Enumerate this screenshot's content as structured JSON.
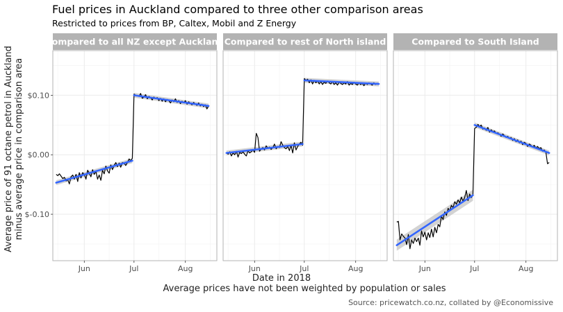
{
  "title": "Fuel prices in Auckland compared to three other comparison areas",
  "subtitle": "Restricted to prices from BP, Caltex, Mobil and Z Energy",
  "ylabel_line1": "Average price of 91 octane petrol in Auckland",
  "ylabel_line2": "minus average price in comparison area",
  "xlabel": "Date in 2018",
  "caption": "Average prices have not been weighted by population or sales",
  "source": "Source: pricewatch.co.nz, collated by @Economissive",
  "chart_data": {
    "type": "line",
    "facets": [
      "Compared to all NZ except Auckland",
      "Compared to rest of North island",
      "Compared to South Island"
    ],
    "x_tick_labels": [
      "Jun",
      "Jul",
      "Aug"
    ],
    "y_tick_labels": [
      "$0.10",
      "$0.00",
      "$-0.10"
    ],
    "y_ticks": [
      0.1,
      0.0,
      -0.1
    ],
    "ylim": [
      -0.178,
      0.175
    ],
    "xlim": [
      "2018-05-13",
      "2018-08-20"
    ],
    "grid": true,
    "colors": {
      "raw": "#000000",
      "trend": "#3366ff",
      "ci_band": "#c8c8c8",
      "strip": "#b3b3b3",
      "grid": "#ebebeb",
      "panel_border": "#b3b3b3"
    },
    "series": [
      {
        "facet": "Compared to all NZ except Auckland",
        "pre_july": {
          "x": [
            "2018-05-15",
            "2018-05-16",
            "2018-05-17",
            "2018-05-18",
            "2018-05-19",
            "2018-05-20",
            "2018-05-21",
            "2018-05-22",
            "2018-05-23",
            "2018-05-24",
            "2018-05-25",
            "2018-05-26",
            "2018-05-27",
            "2018-05-28",
            "2018-05-29",
            "2018-05-30",
            "2018-05-31",
            "2018-06-01",
            "2018-06-02",
            "2018-06-03",
            "2018-06-04",
            "2018-06-05",
            "2018-06-06",
            "2018-06-07",
            "2018-06-08",
            "2018-06-09",
            "2018-06-10",
            "2018-06-11",
            "2018-06-12",
            "2018-06-13",
            "2018-06-14",
            "2018-06-15",
            "2018-06-16",
            "2018-06-17",
            "2018-06-18",
            "2018-06-19",
            "2018-06-20",
            "2018-06-21",
            "2018-06-22",
            "2018-06-23",
            "2018-06-24",
            "2018-06-25",
            "2018-06-26",
            "2018-06-27",
            "2018-06-28",
            "2018-06-29",
            "2018-06-30"
          ],
          "y": [
            -0.033,
            -0.035,
            -0.032,
            -0.036,
            -0.04,
            -0.038,
            -0.044,
            -0.042,
            -0.049,
            -0.037,
            -0.034,
            -0.041,
            -0.033,
            -0.045,
            -0.03,
            -0.039,
            -0.03,
            -0.033,
            -0.041,
            -0.026,
            -0.031,
            -0.037,
            -0.025,
            -0.033,
            -0.028,
            -0.041,
            -0.034,
            -0.043,
            -0.026,
            -0.032,
            -0.019,
            -0.027,
            -0.031,
            -0.017,
            -0.025,
            -0.018,
            -0.013,
            -0.02,
            -0.014,
            -0.021,
            -0.013,
            -0.014,
            -0.018,
            -0.013,
            -0.007,
            -0.01,
            -0.006
          ]
        },
        "post_july": {
          "x": [
            "2018-07-01",
            "2018-07-02",
            "2018-07-03",
            "2018-07-04",
            "2018-07-05",
            "2018-07-06",
            "2018-07-07",
            "2018-07-08",
            "2018-07-09",
            "2018-07-10",
            "2018-07-11",
            "2018-07-12",
            "2018-07-13",
            "2018-07-14",
            "2018-07-15",
            "2018-07-16",
            "2018-07-17",
            "2018-07-18",
            "2018-07-19",
            "2018-07-20",
            "2018-07-21",
            "2018-07-22",
            "2018-07-23",
            "2018-07-24",
            "2018-07-25",
            "2018-07-26",
            "2018-07-27",
            "2018-07-28",
            "2018-07-29",
            "2018-07-30",
            "2018-07-31",
            "2018-08-01",
            "2018-08-02",
            "2018-08-03",
            "2018-08-04",
            "2018-08-05",
            "2018-08-06",
            "2018-08-07",
            "2018-08-08",
            "2018-08-09",
            "2018-08-10",
            "2018-08-11",
            "2018-08-12",
            "2018-08-13",
            "2018-08-14",
            "2018-08-15"
          ],
          "y": [
            0.102,
            0.1,
            0.099,
            0.098,
            0.103,
            0.095,
            0.097,
            0.101,
            0.094,
            0.098,
            0.096,
            0.092,
            0.097,
            0.094,
            0.096,
            0.091,
            0.095,
            0.09,
            0.094,
            0.089,
            0.093,
            0.091,
            0.087,
            0.092,
            0.089,
            0.094,
            0.088,
            0.091,
            0.086,
            0.09,
            0.087,
            0.091,
            0.085,
            0.089,
            0.086,
            0.084,
            0.088,
            0.085,
            0.083,
            0.087,
            0.082,
            0.085,
            0.081,
            0.084,
            0.077,
            0.082
          ]
        },
        "trend_pre": {
          "x": [
            "2018-05-15",
            "2018-06-30"
          ],
          "y": [
            -0.047,
            -0.01
          ]
        },
        "trend_post": {
          "x": [
            "2018-07-01",
            "2018-08-15"
          ],
          "y": [
            0.1,
            0.082
          ]
        }
      },
      {
        "facet": "Compared to rest of North island",
        "pre_july": {
          "x": [
            "2018-05-15",
            "2018-05-16",
            "2018-05-17",
            "2018-05-18",
            "2018-05-19",
            "2018-05-20",
            "2018-05-21",
            "2018-05-22",
            "2018-05-23",
            "2018-05-24",
            "2018-05-25",
            "2018-05-26",
            "2018-05-27",
            "2018-05-28",
            "2018-05-29",
            "2018-05-30",
            "2018-05-31",
            "2018-06-01",
            "2018-06-02",
            "2018-06-03",
            "2018-06-04",
            "2018-06-05",
            "2018-06-06",
            "2018-06-07",
            "2018-06-08",
            "2018-06-09",
            "2018-06-10",
            "2018-06-11",
            "2018-06-12",
            "2018-06-13",
            "2018-06-14",
            "2018-06-15",
            "2018-06-16",
            "2018-06-17",
            "2018-06-18",
            "2018-06-19",
            "2018-06-20",
            "2018-06-21",
            "2018-06-22",
            "2018-06-23",
            "2018-06-24",
            "2018-06-25",
            "2018-06-26",
            "2018-06-27",
            "2018-06-28",
            "2018-06-29",
            "2018-06-30"
          ],
          "y": [
            0.004,
            0.001,
            0.005,
            -0.002,
            0.003,
            0.0,
            0.006,
            -0.004,
            0.004,
            0.002,
            0.005,
            0.001,
            -0.002,
            0.007,
            0.003,
            0.005,
            0.008,
            0.004,
            0.036,
            0.029,
            0.006,
            0.01,
            0.012,
            0.008,
            0.015,
            0.011,
            0.013,
            0.009,
            0.012,
            0.018,
            0.01,
            0.014,
            0.012,
            0.022,
            0.016,
            0.012,
            0.01,
            0.014,
            0.007,
            0.016,
            0.003,
            0.02,
            0.008,
            0.014,
            0.018,
            0.021,
            0.016
          ]
        },
        "post_july": {
          "x": [
            "2018-07-01",
            "2018-07-02",
            "2018-07-03",
            "2018-07-04",
            "2018-07-05",
            "2018-07-06",
            "2018-07-07",
            "2018-07-08",
            "2018-07-09",
            "2018-07-10",
            "2018-07-11",
            "2018-07-12",
            "2018-07-13",
            "2018-07-14",
            "2018-07-15",
            "2018-07-16",
            "2018-07-17",
            "2018-07-18",
            "2018-07-19",
            "2018-07-20",
            "2018-07-21",
            "2018-07-22",
            "2018-07-23",
            "2018-07-24",
            "2018-07-25",
            "2018-07-26",
            "2018-07-27",
            "2018-07-28",
            "2018-07-29",
            "2018-07-30",
            "2018-07-31",
            "2018-08-01",
            "2018-08-02",
            "2018-08-03",
            "2018-08-04",
            "2018-08-05",
            "2018-08-06",
            "2018-08-07",
            "2018-08-08",
            "2018-08-09",
            "2018-08-10",
            "2018-08-11",
            "2018-08-12",
            "2018-08-13",
            "2018-08-14",
            "2018-08-15"
          ],
          "y": [
            0.128,
            0.125,
            0.127,
            0.121,
            0.126,
            0.119,
            0.125,
            0.121,
            0.124,
            0.119,
            0.123,
            0.118,
            0.122,
            0.12,
            0.124,
            0.121,
            0.119,
            0.123,
            0.118,
            0.121,
            0.117,
            0.122,
            0.12,
            0.118,
            0.121,
            0.119,
            0.123,
            0.117,
            0.12,
            0.118,
            0.122,
            0.119,
            0.117,
            0.121,
            0.118,
            0.12,
            0.116,
            0.12,
            0.118,
            0.121,
            0.119,
            0.117,
            0.121,
            0.118,
            0.12,
            0.119
          ]
        },
        "trend_pre": {
          "x": [
            "2018-05-15",
            "2018-06-30"
          ],
          "y": [
            0.003,
            0.018
          ]
        },
        "trend_post": {
          "x": [
            "2018-07-01",
            "2018-08-15"
          ],
          "y": [
            0.125,
            0.119
          ]
        }
      },
      {
        "facet": "Compared to South Island",
        "pre_july": {
          "x": [
            "2018-05-15",
            "2018-05-16",
            "2018-05-17",
            "2018-05-18",
            "2018-05-19",
            "2018-05-20",
            "2018-05-21",
            "2018-05-22",
            "2018-05-23",
            "2018-05-24",
            "2018-05-25",
            "2018-05-26",
            "2018-05-27",
            "2018-05-28",
            "2018-05-29",
            "2018-05-30",
            "2018-05-31",
            "2018-06-01",
            "2018-06-02",
            "2018-06-03",
            "2018-06-04",
            "2018-06-05",
            "2018-06-06",
            "2018-06-07",
            "2018-06-08",
            "2018-06-09",
            "2018-06-10",
            "2018-06-11",
            "2018-06-12",
            "2018-06-13",
            "2018-06-14",
            "2018-06-15",
            "2018-06-16",
            "2018-06-17",
            "2018-06-18",
            "2018-06-19",
            "2018-06-20",
            "2018-06-21",
            "2018-06-22",
            "2018-06-23",
            "2018-06-24",
            "2018-06-25",
            "2018-06-26",
            "2018-06-27",
            "2018-06-28",
            "2018-06-29",
            "2018-06-30"
          ],
          "y": [
            -0.113,
            -0.112,
            -0.143,
            -0.133,
            -0.137,
            -0.14,
            -0.151,
            -0.134,
            -0.158,
            -0.143,
            -0.149,
            -0.14,
            -0.146,
            -0.14,
            -0.152,
            -0.128,
            -0.138,
            -0.13,
            -0.143,
            -0.131,
            -0.139,
            -0.125,
            -0.138,
            -0.122,
            -0.131,
            -0.117,
            -0.121,
            -0.103,
            -0.109,
            -0.096,
            -0.102,
            -0.09,
            -0.094,
            -0.085,
            -0.089,
            -0.079,
            -0.083,
            -0.076,
            -0.081,
            -0.071,
            -0.078,
            -0.072,
            -0.06,
            -0.077,
            -0.066,
            -0.072,
            -0.068
          ]
        },
        "post_july": {
          "x": [
            "2018-07-01",
            "2018-07-02",
            "2018-07-03",
            "2018-07-04",
            "2018-07-05",
            "2018-07-06",
            "2018-07-07",
            "2018-07-08",
            "2018-07-09",
            "2018-07-10",
            "2018-07-11",
            "2018-07-12",
            "2018-07-13",
            "2018-07-14",
            "2018-07-15",
            "2018-07-16",
            "2018-07-17",
            "2018-07-18",
            "2018-07-19",
            "2018-07-20",
            "2018-07-21",
            "2018-07-22",
            "2018-07-23",
            "2018-07-24",
            "2018-07-25",
            "2018-07-26",
            "2018-07-27",
            "2018-07-28",
            "2018-07-29",
            "2018-07-30",
            "2018-07-31",
            "2018-08-01",
            "2018-08-02",
            "2018-08-03",
            "2018-08-04",
            "2018-08-05",
            "2018-08-06",
            "2018-08-07",
            "2018-08-08",
            "2018-08-09",
            "2018-08-10",
            "2018-08-11",
            "2018-08-12",
            "2018-08-13",
            "2018-08-14",
            "2018-08-15"
          ],
          "y": [
            0.044,
            0.046,
            0.051,
            0.047,
            0.05,
            0.043,
            0.045,
            0.041,
            0.046,
            0.038,
            0.042,
            0.039,
            0.04,
            0.036,
            0.037,
            0.035,
            0.031,
            0.035,
            0.032,
            0.029,
            0.031,
            0.027,
            0.029,
            0.024,
            0.027,
            0.022,
            0.025,
            0.02,
            0.023,
            0.017,
            0.021,
            0.019,
            0.014,
            0.018,
            0.016,
            0.013,
            0.016,
            0.011,
            0.014,
            0.01,
            0.012,
            0.006,
            0.008,
            0.005,
            -0.015,
            -0.013
          ]
        },
        "trend_pre": {
          "x": [
            "2018-05-15",
            "2018-06-30"
          ],
          "y": [
            -0.152,
            -0.068
          ]
        },
        "trend_post": {
          "x": [
            "2018-07-01",
            "2018-08-15"
          ],
          "y": [
            0.05,
            0.003
          ]
        }
      }
    ]
  }
}
